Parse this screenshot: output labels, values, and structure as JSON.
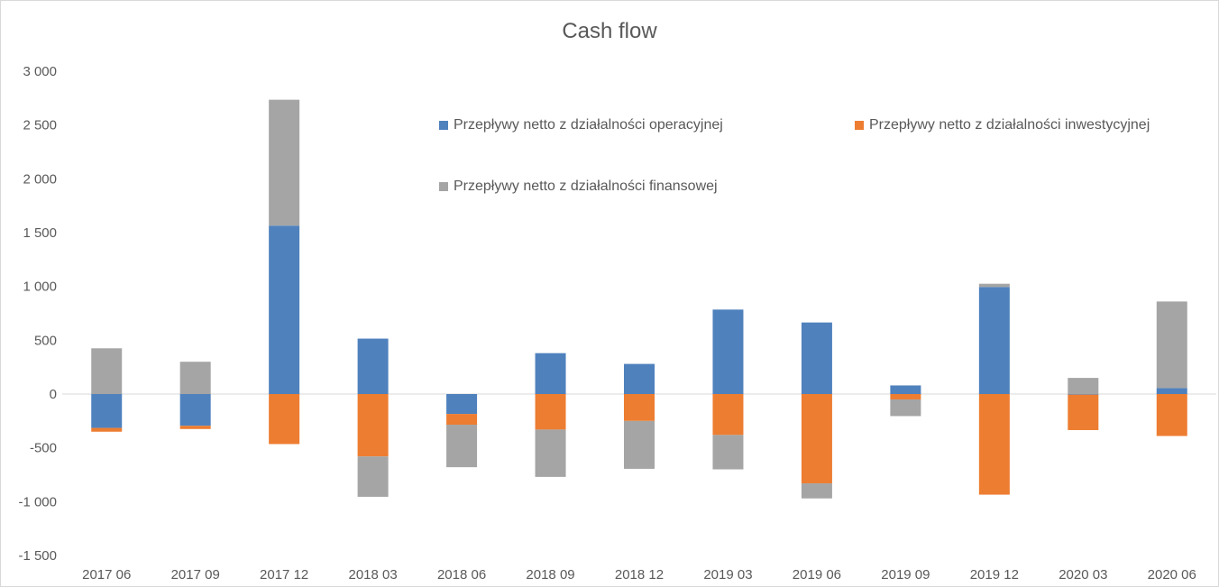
{
  "chart_data": {
    "type": "bar",
    "stacked": true,
    "title": "Cash flow",
    "categories": [
      "2017 06",
      "2017 09",
      "2017 12",
      "2018 03",
      "2018 06",
      "2018 09",
      "2018 12",
      "2019 03",
      "2019 06",
      "2019 09",
      "2019 12",
      "2020 03",
      "2020 06"
    ],
    "series": [
      {
        "name": "Przepływy netto z działalności operacyjnej",
        "color": "#4f81bd",
        "values": [
          -315,
          -295,
          1565,
          515,
          -185,
          380,
          280,
          785,
          665,
          80,
          995,
          -5,
          55
        ]
      },
      {
        "name": "Przepływy netto z działalności inwestycyjnej",
        "color": "#ed7d31",
        "values": [
          -35,
          -30,
          -465,
          -580,
          -100,
          -330,
          -250,
          -380,
          -830,
          -50,
          -935,
          -330,
          -390
        ]
      },
      {
        "name": "Przepływy netto z działalności finansowej",
        "color": "#a5a5a5",
        "values": [
          425,
          300,
          1170,
          -375,
          -395,
          -440,
          -445,
          -320,
          -140,
          -155,
          30,
          150,
          805
        ]
      }
    ],
    "ylim": [
      -1500,
      3000
    ],
    "yticks": [
      -1500,
      -1000,
      -500,
      0,
      500,
      1000,
      1500,
      2000,
      2500,
      3000
    ],
    "ytick_labels": [
      "-1 500",
      "-1 000",
      "-500",
      "0",
      "500",
      "1 000",
      "1 500",
      "2 000",
      "2 500",
      "3 000"
    ],
    "grid": false,
    "legend_position": "top-right"
  }
}
